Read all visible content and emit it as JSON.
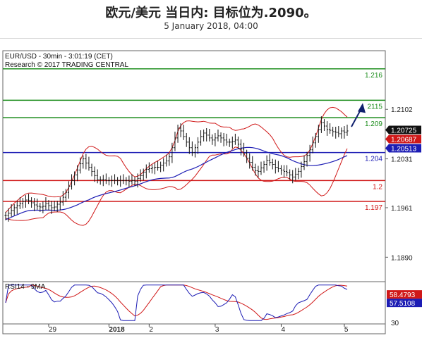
{
  "header": {
    "title": "欧元/美元 当日内: 目标位为.2090。",
    "subtitle": "5 January 2018, 04:00"
  },
  "chart_data": {
    "type": "candlestick",
    "title": "EUR/USD - 30min - 3:01:19 (CET)",
    "subtitle": "Research © 2017 TRADING CENTRAL",
    "ylim": [
      1.1855,
      1.2186
    ],
    "y_ticks": [
      1.189,
      1.1961,
      1.2031,
      1.2102
    ],
    "y_tick_labels": [
      "1.1890",
      "1.1961",
      "1.2031",
      "1.2102"
    ],
    "x_ticks": [
      {
        "label": "29",
        "t": 15,
        "bold": false
      },
      {
        "label": "2018",
        "t": 36,
        "bold": true
      },
      {
        "label": "2",
        "t": 50,
        "bold": false
      },
      {
        "label": "3",
        "t": 73,
        "bold": false
      },
      {
        "label": "4",
        "t": 96,
        "bold": false
      },
      {
        "label": "5",
        "t": 118,
        "bold": false
      }
    ],
    "levels": [
      {
        "value": 1.216,
        "label": "1.216",
        "color": "#1a8c1a"
      },
      {
        "value": 1.2115,
        "label": "2115",
        "color": "#1a8c1a"
      },
      {
        "value": 1.209,
        "label": "1.209",
        "color": "#1a8c1a"
      },
      {
        "value": 1.204,
        "label": "1.204",
        "color": "#1c1cb4"
      },
      {
        "value": 1.2,
        "label": "1.2",
        "color": "#d01818"
      },
      {
        "value": 1.197,
        "label": "1.197",
        "color": "#d01818"
      }
    ],
    "price_tags": [
      {
        "value": 1.20725,
        "label": "1.20725",
        "bg": "#111111",
        "fg": "#ffffff"
      },
      {
        "value": 1.20687,
        "label": "1.20687",
        "bg": "#d01818",
        "fg": "#ffffff"
      },
      {
        "value": 1.20513,
        "label": "1.20513",
        "bg": "#1c1cb4",
        "fg": "#ffffff"
      }
    ],
    "close": [
      1.195,
      1.1953,
      1.1957,
      1.1961,
      1.1964,
      1.1967,
      1.197,
      1.1972,
      1.1971,
      1.1968,
      1.1965,
      1.1963,
      1.1962,
      1.1963,
      1.1967,
      1.1964,
      1.1961,
      1.1962,
      1.1966,
      1.1969,
      1.1976,
      1.1983,
      1.1992,
      1.2,
      1.2008,
      1.2015,
      1.2024,
      1.2031,
      1.2025,
      1.2019,
      1.2013,
      1.2007,
      1.2001,
      1.2001,
      1.2001,
      1.2,
      1.2,
      1.2,
      1.2,
      1.2,
      1.2,
      1.2,
      1.2,
      1.1999,
      1.2,
      1.1999,
      1.2003,
      1.2007,
      1.2012,
      1.2016,
      1.2017,
      1.2018,
      1.2019,
      1.2019,
      1.2022,
      1.2025,
      1.2028,
      1.2034,
      1.2047,
      1.2061,
      1.2075,
      1.2071,
      1.2063,
      1.2055,
      1.2047,
      1.204,
      1.2047,
      1.2055,
      1.2063,
      1.2068,
      1.2065,
      1.2061,
      1.2058,
      1.2061,
      1.2064,
      1.2061,
      1.2058,
      1.2055,
      1.2055,
      1.2056,
      1.2058,
      1.2052,
      1.2045,
      1.2039,
      1.2032,
      1.2026,
      1.2019,
      1.2014,
      1.2013,
      1.2018,
      1.2023,
      1.2029,
      1.2026,
      1.2023,
      1.2019,
      1.2017,
      1.2015,
      1.2013,
      1.2011,
      1.2008,
      1.2005,
      1.2009,
      1.2013,
      1.202,
      1.2027,
      1.2036,
      1.2044,
      1.2054,
      1.2063,
      1.2073,
      1.2083,
      1.2078,
      1.2073,
      1.2072,
      1.207,
      1.2069,
      1.2067,
      1.2071,
      1.2069,
      1.2071
    ],
    "rsi": {
      "name": "RSI14 - 9MA",
      "ylim": [
        30,
        70
      ],
      "ticks": [
        30,
        50
      ],
      "value_tags": [
        {
          "value": 58.4793,
          "label": "58.4793",
          "bg": "#d01818",
          "fg": "#ffffff"
        },
        {
          "value": 57.5108,
          "label": "57.5108",
          "bg": "#1c1cb4",
          "fg": "#ffffff"
        }
      ]
    }
  }
}
